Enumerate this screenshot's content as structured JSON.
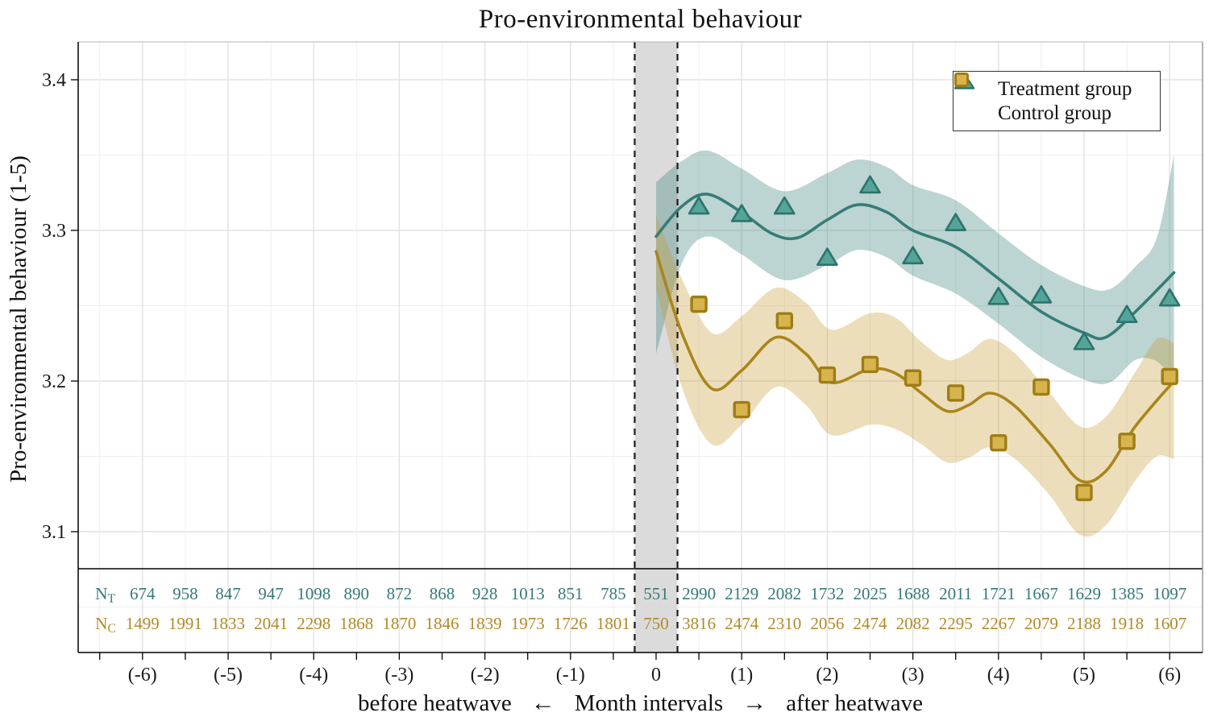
{
  "colors": {
    "treatment_line": "#377c76",
    "treatment_marker_fill": "#55a49a",
    "treatment_marker_stroke": "#2c736c",
    "treatment_ribbon": "rgba(64,132,125,0.35)",
    "treatment_text": "#35797b",
    "control_line": "#a9861b",
    "control_marker_fill": "#d8b44e",
    "control_marker_stroke": "#9f7d15",
    "control_ribbon": "rgba(196,156,48,0.33)",
    "control_text": "#b28a28",
    "heatwave_band": "#dbdbdb",
    "dashed_line": "#1c1c1c",
    "grid_major": "#e2e2e2",
    "grid_minor": "#eeeeee",
    "axis": "#000000",
    "frame_top": "#b5b5b5",
    "frame_right": "#9a9a9a",
    "tick_text": "#1a1a1a"
  },
  "legend": {
    "items": [
      {
        "label": "Treatment group",
        "marker": "triangle"
      },
      {
        "label": "Control group",
        "marker": "square"
      }
    ]
  },
  "axes": {
    "y_label": "Pro-environmental behaviour (1-5)",
    "x_label_before": "before heatwave",
    "arrow_left": "←",
    "x_label_center": "Month intervals",
    "arrow_right": "→",
    "x_label_after": "after heatwave"
  },
  "chart_data": {
    "type": "scatter+smooth",
    "title": "Pro-environmental behaviour",
    "xlabel": "before heatwave ← Month intervals → after heatwave",
    "ylabel": "Pro-environmental behaviour (1-5)",
    "xlim": [
      -6.75,
      6.38
    ],
    "ylim": [
      3.02,
      3.425
    ],
    "grid": true,
    "legend_position": "top-right",
    "y_major_ticks": [
      3.1,
      3.2,
      3.3,
      3.4
    ],
    "y_minor_step": 0.05,
    "x_ticks": {
      "months": [
        -6,
        -5,
        -4,
        -3,
        -2,
        -1,
        0,
        1,
        2,
        3,
        4,
        5,
        6
      ],
      "labels": [
        "(-6)",
        "(-5)",
        "(-4)",
        "(-3)",
        "(-2)",
        "(-1)",
        "0",
        "(1)",
        "(2)",
        "(3)",
        "(4)",
        "(5)",
        "(6)"
      ],
      "minor_tick_step": 0.5
    },
    "heatwave_band": {
      "from": -0.25,
      "to": 0.25
    },
    "series": [
      {
        "name": "Treatment group",
        "marker": "triangle",
        "points": {
          "x": [
            0.5,
            1,
            1.5,
            2,
            2.5,
            3,
            3.5,
            4,
            4.5,
            5,
            5.5,
            6
          ],
          "y": [
            3.316,
            3.311,
            3.316,
            3.282,
            3.33,
            3.283,
            3.305,
            3.256,
            3.257,
            3.226,
            3.244,
            3.255
          ]
        },
        "smooth": [
          [
            0,
            3.296
          ],
          [
            0.3,
            3.316
          ],
          [
            0.6,
            3.324
          ],
          [
            1,
            3.312
          ],
          [
            1.35,
            3.298
          ],
          [
            1.65,
            3.295
          ],
          [
            2,
            3.307
          ],
          [
            2.35,
            3.317
          ],
          [
            2.7,
            3.312
          ],
          [
            3,
            3.3
          ],
          [
            3.5,
            3.289
          ],
          [
            4,
            3.268
          ],
          [
            4.5,
            3.246
          ],
          [
            5,
            3.232
          ],
          [
            5.25,
            3.229
          ],
          [
            5.6,
            3.246
          ],
          [
            6.05,
            3.272
          ]
        ],
        "ribbon_upper": [
          [
            0,
            3.332
          ],
          [
            0.3,
            3.346
          ],
          [
            0.6,
            3.353
          ],
          [
            1,
            3.341
          ],
          [
            1.5,
            3.326
          ],
          [
            2,
            3.338
          ],
          [
            2.35,
            3.347
          ],
          [
            2.7,
            3.342
          ],
          [
            3,
            3.33
          ],
          [
            3.5,
            3.32
          ],
          [
            4,
            3.298
          ],
          [
            4.5,
            3.277
          ],
          [
            5,
            3.263
          ],
          [
            5.3,
            3.261
          ],
          [
            5.6,
            3.276
          ],
          [
            5.85,
            3.295
          ],
          [
            6.05,
            3.35
          ]
        ],
        "ribbon_lower": [
          [
            0,
            3.218
          ],
          [
            0.3,
            3.278
          ],
          [
            0.6,
            3.296
          ],
          [
            1,
            3.284
          ],
          [
            1.5,
            3.267
          ],
          [
            2,
            3.277
          ],
          [
            2.35,
            3.287
          ],
          [
            2.7,
            3.282
          ],
          [
            3,
            3.27
          ],
          [
            3.5,
            3.258
          ],
          [
            4,
            3.238
          ],
          [
            4.5,
            3.216
          ],
          [
            5,
            3.201
          ],
          [
            5.3,
            3.199
          ],
          [
            5.6,
            3.214
          ],
          [
            5.85,
            3.213
          ],
          [
            6.05,
            3.2
          ]
        ]
      },
      {
        "name": "Control group",
        "marker": "square",
        "points": {
          "x": [
            0.5,
            1,
            1.5,
            2,
            2.5,
            3,
            3.5,
            4,
            4.5,
            5,
            5.5,
            6
          ],
          "y": [
            3.251,
            3.181,
            3.24,
            3.204,
            3.211,
            3.202,
            3.192,
            3.159,
            3.196,
            3.126,
            3.16,
            3.203
          ]
        },
        "smooth": [
          [
            0,
            3.286
          ],
          [
            0.3,
            3.232
          ],
          [
            0.65,
            3.195
          ],
          [
            1,
            3.207
          ],
          [
            1.4,
            3.229
          ],
          [
            1.75,
            3.218
          ],
          [
            2.05,
            3.199
          ],
          [
            2.5,
            3.208
          ],
          [
            2.8,
            3.205
          ],
          [
            3.1,
            3.192
          ],
          [
            3.4,
            3.18
          ],
          [
            3.65,
            3.184
          ],
          [
            3.9,
            3.192
          ],
          [
            4.2,
            3.183
          ],
          [
            4.6,
            3.158
          ],
          [
            4.95,
            3.134
          ],
          [
            5.25,
            3.14
          ],
          [
            5.6,
            3.17
          ],
          [
            6.05,
            3.2
          ]
        ],
        "ribbon_upper": [
          [
            0,
            3.31
          ],
          [
            0.3,
            3.268
          ],
          [
            0.65,
            3.232
          ],
          [
            1,
            3.243
          ],
          [
            1.4,
            3.262
          ],
          [
            1.75,
            3.252
          ],
          [
            2.05,
            3.234
          ],
          [
            2.5,
            3.245
          ],
          [
            2.8,
            3.242
          ],
          [
            3.1,
            3.226
          ],
          [
            3.4,
            3.214
          ],
          [
            3.65,
            3.219
          ],
          [
            3.9,
            3.228
          ],
          [
            4.2,
            3.218
          ],
          [
            4.6,
            3.192
          ],
          [
            4.95,
            3.17
          ],
          [
            5.25,
            3.176
          ],
          [
            5.6,
            3.206
          ],
          [
            5.85,
            3.228
          ],
          [
            6.05,
            3.225
          ]
        ],
        "ribbon_lower": [
          [
            0,
            3.262
          ],
          [
            0.3,
            3.196
          ],
          [
            0.65,
            3.158
          ],
          [
            1,
            3.171
          ],
          [
            1.4,
            3.196
          ],
          [
            1.75,
            3.184
          ],
          [
            2.05,
            3.164
          ],
          [
            2.5,
            3.171
          ],
          [
            2.8,
            3.168
          ],
          [
            3.1,
            3.158
          ],
          [
            3.4,
            3.146
          ],
          [
            3.65,
            3.149
          ],
          [
            3.9,
            3.156
          ],
          [
            4.2,
            3.148
          ],
          [
            4.6,
            3.124
          ],
          [
            4.95,
            3.098
          ],
          [
            5.25,
            3.104
          ],
          [
            5.6,
            3.134
          ],
          [
            5.85,
            3.15
          ],
          [
            6.05,
            3.148
          ]
        ]
      }
    ],
    "sample_sizes": {
      "x_start": -6,
      "x_step": 0.5,
      "rows": [
        {
          "label": "N",
          "sub": "T",
          "values": [
            674,
            958,
            847,
            947,
            1098,
            890,
            872,
            868,
            928,
            1013,
            851,
            785,
            551,
            2990,
            2129,
            2082,
            1732,
            2025,
            1688,
            2011,
            1721,
            1667,
            1629,
            1385,
            1097
          ]
        },
        {
          "label": "N",
          "sub": "C",
          "values": [
            1499,
            1991,
            1833,
            2041,
            2298,
            1868,
            1870,
            1846,
            1839,
            1973,
            1726,
            1801,
            750,
            3816,
            2474,
            2310,
            2056,
            2474,
            2082,
            2295,
            2267,
            2079,
            2188,
            1918,
            1607
          ]
        }
      ]
    }
  }
}
